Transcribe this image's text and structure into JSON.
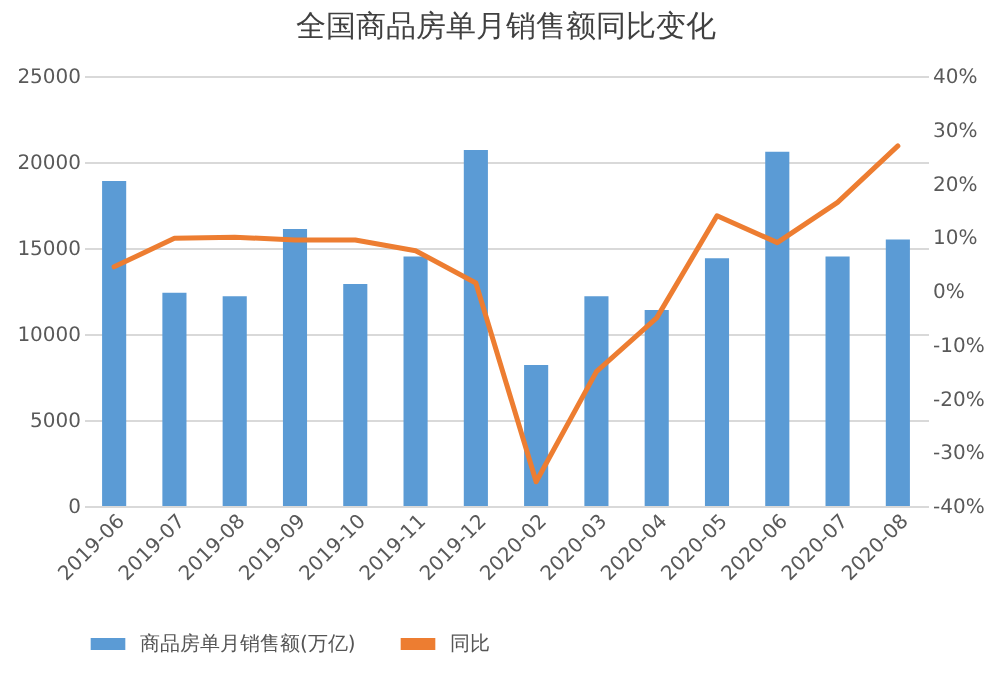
{
  "chart_data": {
    "type": "bar",
    "title": "全国商品房单月销售额同比变化",
    "categories": [
      "2019-06",
      "2019-07",
      "2019-08",
      "2019-09",
      "2019-10",
      "2019-11",
      "2019-12",
      "2020-02",
      "2020-03",
      "2020-04",
      "2020-05",
      "2020-06",
      "2020-07",
      "2020-08"
    ],
    "series": [
      {
        "name": "商品房单月销售额(万亿)",
        "color": "#5b9bd5",
        "values": [
          18900,
          12400,
          12200,
          16100,
          12900,
          14500,
          20700,
          8200,
          12200,
          11400,
          14400,
          20600,
          14500,
          15500
        ]
      },
      {
        "name": "同比",
        "type": "line",
        "axis": "y2",
        "color": "#ed7d31",
        "values": [
          4.5,
          9.8,
          10,
          9.5,
          9.5,
          7.5,
          1.5,
          -35.5,
          -15,
          -5,
          14,
          9,
          16.5,
          27
        ]
      }
    ],
    "ylim": [
      0,
      25000
    ],
    "yticks": [
      0,
      5000,
      10000,
      15000,
      20000,
      25000
    ],
    "y2lim": [
      -40,
      40
    ],
    "y2ticks": [
      {
        "value": -40,
        "label": "-40%"
      },
      {
        "value": -30,
        "label": "-30%"
      },
      {
        "value": -20,
        "label": "-20%"
      },
      {
        "value": -10,
        "label": "-10%"
      },
      {
        "value": 0,
        "label": "0%"
      },
      {
        "value": 10,
        "label": "10%"
      },
      {
        "value": 20,
        "label": "20%"
      },
      {
        "value": 30,
        "label": "30%"
      },
      {
        "value": 40,
        "label": "40%"
      }
    ],
    "grid": "y",
    "legend": "bottom"
  }
}
